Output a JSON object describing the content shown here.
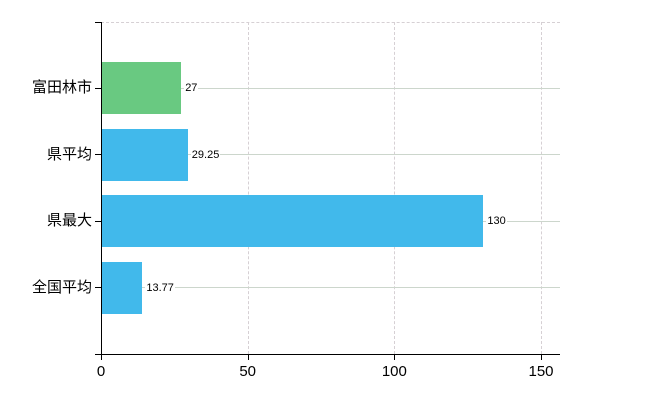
{
  "chart_data": {
    "type": "bar",
    "orientation": "horizontal",
    "title": "",
    "xlabel": "",
    "ylabel": "",
    "categories": [
      "富田林市",
      "県平均",
      "県最大",
      "全国平均"
    ],
    "values": [
      27,
      29.25,
      130,
      13.77
    ],
    "value_labels": [
      "27",
      "29.25",
      "130",
      "13.77"
    ],
    "bar_colors": [
      "#69c981",
      "#41b9eb",
      "#41b9eb",
      "#41b9eb"
    ],
    "x_ticks": [
      "0",
      "50",
      "100",
      "150"
    ],
    "x_tick_values": [
      0,
      50,
      100,
      150
    ],
    "xlim": [
      0,
      156.8
    ],
    "grid": true,
    "legend_position": "none",
    "colors": {
      "background": "#ffffff",
      "axis": "#000000",
      "h_gridline": "#ccd6cc",
      "v_gridline": "#d6d0d4",
      "label": "#000000",
      "value_label_bg": "#ffffff"
    }
  }
}
